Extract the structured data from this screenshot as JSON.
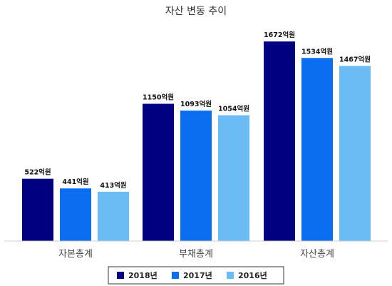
{
  "chart_data": {
    "type": "bar",
    "title": "자산 변동 추이",
    "categories": [
      "자본총계",
      "부채총계",
      "자산총계"
    ],
    "series": [
      {
        "name": "2018년",
        "color": "#000080",
        "values": [
          522,
          1150,
          1672
        ]
      },
      {
        "name": "2017년",
        "color": "#0b6ef0",
        "values": [
          441,
          1093,
          1534
        ]
      },
      {
        "name": "2016년",
        "color": "#6bbcf5",
        "values": [
          413,
          1054,
          1467
        ]
      }
    ],
    "value_unit": "억원",
    "ylim": [
      0,
      1900
    ],
    "grid": false,
    "legend_position": "bottom"
  }
}
